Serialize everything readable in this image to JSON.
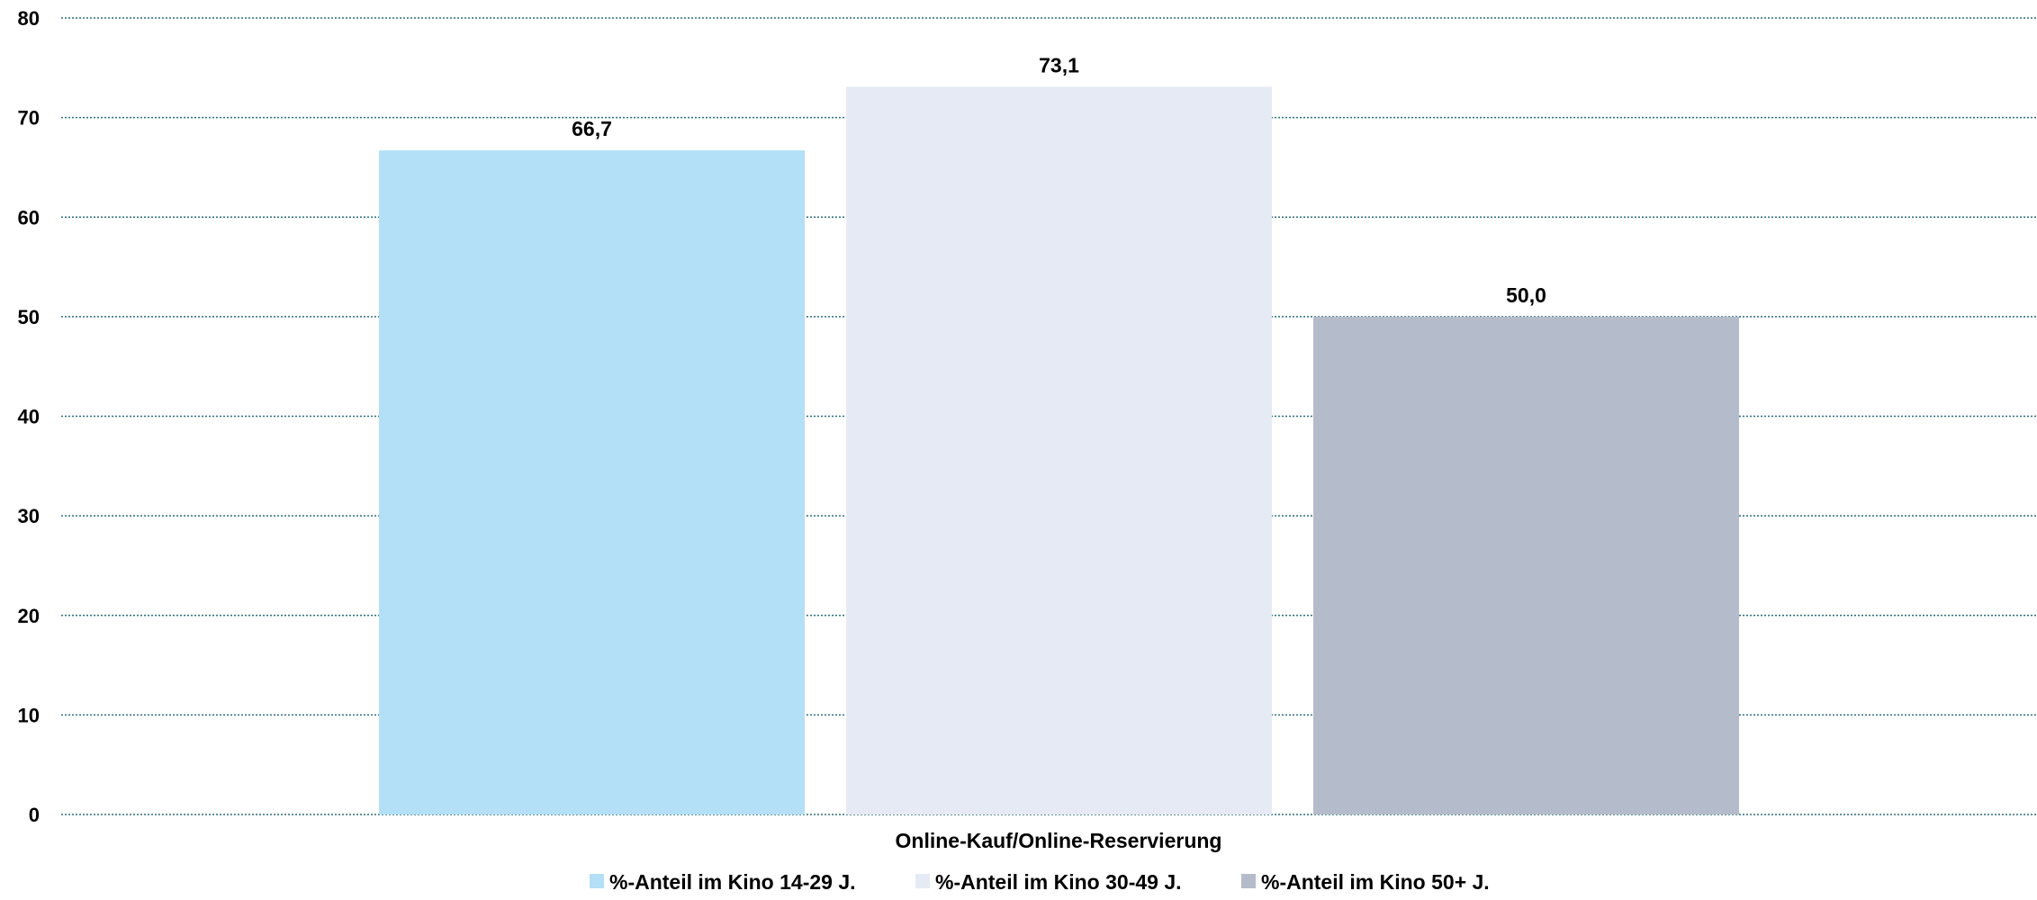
{
  "chart_data": {
    "type": "bar",
    "categories": [
      "Online-Kauf/Online-Reservierung"
    ],
    "series": [
      {
        "name": "%-Anteil im Kino 14-29 J.",
        "values": [
          66.7
        ],
        "label": "66,7",
        "color": "#b3e0f6"
      },
      {
        "name": "%-Anteil im Kino 30-49 J.",
        "values": [
          73.1
        ],
        "label": "73,1",
        "color": "#e6eaf4"
      },
      {
        "name": "%-Anteil im Kino 50+ J.",
        "values": [
          50.0
        ],
        "label": "50,0",
        "color": "#b4bccb"
      }
    ],
    "yticks": [
      "0",
      "10",
      "20",
      "30",
      "40",
      "50",
      "60",
      "70",
      "80"
    ],
    "ylim": [
      0,
      80
    ],
    "grid": true,
    "grid_color": "#2b6f7a",
    "legend_position": "bottom",
    "title": "",
    "xlabel": "",
    "ylabel": ""
  }
}
